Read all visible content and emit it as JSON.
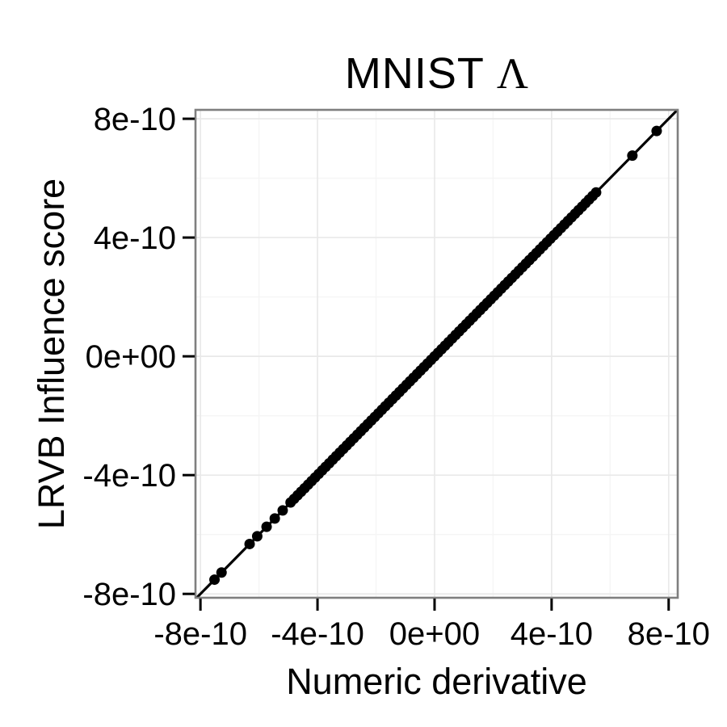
{
  "title": {
    "main": "MNIST ",
    "lambda": "Λ"
  },
  "axes": {
    "x": {
      "label": "Numeric derivative"
    },
    "y": {
      "label": "LRVB Influence score"
    }
  },
  "chart_data": {
    "type": "scatter",
    "title": "MNIST Λ",
    "xlabel": "Numeric derivative",
    "ylabel": "LRVB Influence score",
    "value_unit": 1e-10,
    "xlim": [
      -8.17,
      8.31
    ],
    "ylim": [
      -8.13,
      8.3
    ],
    "x_tick_values": [
      -8,
      -4,
      0,
      4,
      8
    ],
    "x_tick_labels": [
      "-8e-10",
      "-4e-10",
      "0e+00",
      "4e-10",
      "8e-10"
    ],
    "y_tick_values": [
      -8,
      -4,
      0,
      4,
      8
    ],
    "y_tick_labels": [
      "-8e-10",
      "-4e-10",
      "0e+00",
      "4e-10",
      "8e-10"
    ],
    "minor_tick_values": [
      -6,
      -2,
      2,
      6
    ],
    "grid": true,
    "legend": false,
    "identity_line": true,
    "y_rule": "y = x (all points lie on the identity line)",
    "x": [
      -7.52,
      -7.28,
      -6.32,
      -6.06,
      -5.74,
      -5.46,
      -5.19,
      -4.92,
      -4.8,
      -4.68,
      -4.56,
      -4.44,
      -4.32,
      -4.2,
      -4.08,
      -3.96,
      -3.84,
      -3.72,
      -3.6,
      -3.48,
      -3.36,
      -3.24,
      -3.12,
      -3,
      -2.88,
      -2.76,
      -2.64,
      -2.52,
      -2.4,
      -2.28,
      -2.16,
      -2.04,
      -1.92,
      -1.8,
      -1.68,
      -1.56,
      -1.44,
      -1.32,
      -1.2,
      -1.08,
      -0.96,
      -0.84,
      -0.72,
      -0.6,
      -0.48,
      -0.36,
      -0.24,
      -0.12,
      0,
      0.12,
      0.24,
      0.36,
      0.48,
      0.6,
      0.72,
      0.84,
      0.96,
      1.08,
      1.2,
      1.32,
      1.44,
      1.56,
      1.68,
      1.8,
      1.92,
      2.04,
      2.16,
      2.28,
      2.4,
      2.52,
      2.64,
      2.76,
      2.88,
      3,
      3.12,
      3.24,
      3.36,
      3.48,
      3.6,
      3.72,
      3.84,
      3.96,
      4.08,
      4.2,
      4.32,
      4.44,
      4.56,
      4.68,
      4.8,
      4.92,
      5.04,
      5.16,
      5.28,
      5.4,
      5.52,
      6.76,
      7.59
    ]
  },
  "style": {
    "point_color": "#000000",
    "line_color": "#000000",
    "panel_border": "#7f7f7f",
    "grid_major": "#e9e9e9",
    "grid_minor": "#f5f5f5",
    "tick_color": "#000000"
  }
}
